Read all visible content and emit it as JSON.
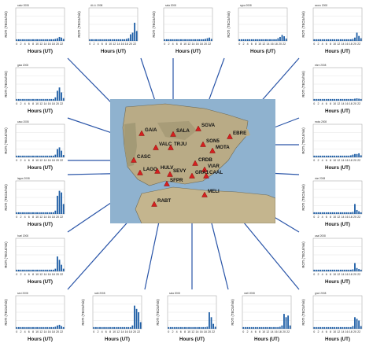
{
  "common": {
    "ylabel": "ROTI (TECU/min)",
    "xlabel": "Hours (UT)",
    "x_ticks": [
      "0",
      "2",
      "4",
      "6",
      "8",
      "10",
      "12",
      "14",
      "16",
      "18",
      "20",
      "22"
    ],
    "ylim": [
      0,
      1
    ],
    "bar_color": "#1f5fa6"
  },
  "chart_data": [
    {
      "type": "bar",
      "id": "p1",
      "title": "cadz 2008",
      "x": [
        0,
        1,
        2,
        3,
        4,
        5,
        6,
        7,
        8,
        9,
        10,
        11,
        12,
        13,
        14,
        15,
        16,
        17,
        18,
        19,
        20,
        21,
        22,
        23
      ],
      "values": [
        0.05,
        0.05,
        0.05,
        0.05,
        0.05,
        0.05,
        0.05,
        0.05,
        0.05,
        0.05,
        0.05,
        0.05,
        0.05,
        0.05,
        0.05,
        0.05,
        0.05,
        0.05,
        0.05,
        0.06,
        0.08,
        0.12,
        0.1,
        0.06
      ]
    },
    {
      "type": "bar",
      "id": "p2",
      "title": "ALLL 2008",
      "x": [
        0,
        1,
        2,
        3,
        4,
        5,
        6,
        7,
        8,
        9,
        10,
        11,
        12,
        13,
        14,
        15,
        16,
        17,
        18,
        19,
        20,
        21,
        22,
        23
      ],
      "values": [
        0.05,
        0.05,
        0.05,
        0.05,
        0.05,
        0.05,
        0.05,
        0.05,
        0.05,
        0.05,
        0.05,
        0.05,
        0.05,
        0.05,
        0.05,
        0.05,
        0.05,
        0.05,
        0.06,
        0.08,
        0.2,
        0.25,
        0.55,
        0.3
      ]
    },
    {
      "type": "bar",
      "id": "p3",
      "title": "sala 2008",
      "x": [
        0,
        1,
        2,
        3,
        4,
        5,
        6,
        7,
        8,
        9,
        10,
        11,
        12,
        13,
        14,
        15,
        16,
        17,
        18,
        19,
        20,
        21,
        22,
        23
      ],
      "values": [
        0.05,
        0.05,
        0.05,
        0.05,
        0.05,
        0.05,
        0.05,
        0.05,
        0.05,
        0.05,
        0.05,
        0.05,
        0.05,
        0.05,
        0.05,
        0.05,
        0.05,
        0.05,
        0.05,
        0.05,
        0.06,
        0.08,
        0.1,
        0.06
      ]
    },
    {
      "type": "bar",
      "id": "p4",
      "title": "sgva 2008",
      "x": [
        0,
        1,
        2,
        3,
        4,
        5,
        6,
        7,
        8,
        9,
        10,
        11,
        12,
        13,
        14,
        15,
        16,
        17,
        18,
        19,
        20,
        21,
        22,
        23
      ],
      "values": [
        0.05,
        0.05,
        0.05,
        0.05,
        0.05,
        0.05,
        0.05,
        0.05,
        0.05,
        0.05,
        0.05,
        0.05,
        0.05,
        0.05,
        0.05,
        0.05,
        0.05,
        0.05,
        0.05,
        0.08,
        0.12,
        0.18,
        0.14,
        0.07
      ]
    },
    {
      "type": "bar",
      "id": "p5",
      "title": "acoru 2008",
      "x": [
        0,
        1,
        2,
        3,
        4,
        5,
        6,
        7,
        8,
        9,
        10,
        11,
        12,
        13,
        14,
        15,
        16,
        17,
        18,
        19,
        20,
        21,
        22,
        23
      ],
      "values": [
        0.05,
        0.05,
        0.05,
        0.05,
        0.05,
        0.05,
        0.05,
        0.05,
        0.05,
        0.05,
        0.05,
        0.05,
        0.05,
        0.05,
        0.05,
        0.05,
        0.05,
        0.05,
        0.05,
        0.06,
        0.1,
        0.25,
        0.15,
        0.08
      ]
    },
    {
      "type": "bar",
      "id": "p6",
      "title": "gaia 2008",
      "x": [
        0,
        1,
        2,
        3,
        4,
        5,
        6,
        7,
        8,
        9,
        10,
        11,
        12,
        13,
        14,
        15,
        16,
        17,
        18,
        19,
        20,
        21,
        22,
        23
      ],
      "values": [
        0.05,
        0.05,
        0.05,
        0.05,
        0.05,
        0.05,
        0.05,
        0.05,
        0.05,
        0.05,
        0.05,
        0.05,
        0.05,
        0.05,
        0.05,
        0.05,
        0.05,
        0.05,
        0.05,
        0.1,
        0.3,
        0.4,
        0.25,
        0.08
      ]
    },
    {
      "type": "bar",
      "id": "p7",
      "title": "ebre 2008",
      "x": [
        0,
        1,
        2,
        3,
        4,
        5,
        6,
        7,
        8,
        9,
        10,
        11,
        12,
        13,
        14,
        15,
        16,
        17,
        18,
        19,
        20,
        21,
        22,
        23
      ],
      "values": [
        0.05,
        0.05,
        0.05,
        0.05,
        0.05,
        0.05,
        0.05,
        0.05,
        0.05,
        0.05,
        0.05,
        0.05,
        0.05,
        0.05,
        0.05,
        0.05,
        0.05,
        0.05,
        0.05,
        0.05,
        0.06,
        0.07,
        0.06,
        0.05
      ]
    },
    {
      "type": "bar",
      "id": "p8",
      "title": "casc 2008",
      "x": [
        0,
        1,
        2,
        3,
        4,
        5,
        6,
        7,
        8,
        9,
        10,
        11,
        12,
        13,
        14,
        15,
        16,
        17,
        18,
        19,
        20,
        21,
        22,
        23
      ],
      "values": [
        0.05,
        0.05,
        0.05,
        0.05,
        0.05,
        0.05,
        0.05,
        0.05,
        0.05,
        0.05,
        0.05,
        0.05,
        0.05,
        0.05,
        0.05,
        0.05,
        0.05,
        0.05,
        0.05,
        0.08,
        0.25,
        0.3,
        0.2,
        0.07
      ]
    },
    {
      "type": "bar",
      "id": "p9",
      "title": "mota 2008",
      "x": [
        0,
        1,
        2,
        3,
        4,
        5,
        6,
        7,
        8,
        9,
        10,
        11,
        12,
        13,
        14,
        15,
        16,
        17,
        18,
        19,
        20,
        21,
        22,
        23
      ],
      "values": [
        0.05,
        0.05,
        0.05,
        0.05,
        0.05,
        0.05,
        0.05,
        0.05,
        0.05,
        0.05,
        0.05,
        0.05,
        0.05,
        0.05,
        0.05,
        0.05,
        0.05,
        0.05,
        0.06,
        0.08,
        0.1,
        0.1,
        0.12,
        0.06
      ]
    },
    {
      "type": "bar",
      "id": "p10",
      "title": "lagos 2008",
      "x": [
        0,
        1,
        2,
        3,
        4,
        5,
        6,
        7,
        8,
        9,
        10,
        11,
        12,
        13,
        14,
        15,
        16,
        17,
        18,
        19,
        20,
        21,
        22,
        23
      ],
      "values": [
        0.05,
        0.05,
        0.05,
        0.05,
        0.05,
        0.05,
        0.05,
        0.05,
        0.05,
        0.05,
        0.05,
        0.05,
        0.05,
        0.05,
        0.05,
        0.05,
        0.05,
        0.05,
        0.05,
        0.1,
        0.55,
        0.7,
        0.65,
        0.3
      ]
    },
    {
      "type": "bar",
      "id": "p11",
      "title": "viar 2008",
      "x": [
        0,
        1,
        2,
        3,
        4,
        5,
        6,
        7,
        8,
        9,
        10,
        11,
        12,
        13,
        14,
        15,
        16,
        17,
        18,
        19,
        20,
        21,
        22,
        23
      ],
      "values": [
        0.05,
        0.05,
        0.05,
        0.05,
        0.05,
        0.05,
        0.05,
        0.05,
        0.05,
        0.05,
        0.05,
        0.05,
        0.05,
        0.05,
        0.05,
        0.05,
        0.05,
        0.05,
        0.05,
        0.06,
        0.3,
        0.12,
        0.08,
        0.05
      ]
    },
    {
      "type": "bar",
      "id": "p12",
      "title": "huel 2008",
      "x": [
        0,
        1,
        2,
        3,
        4,
        5,
        6,
        7,
        8,
        9,
        10,
        11,
        12,
        13,
        14,
        15,
        16,
        17,
        18,
        19,
        20,
        21,
        22,
        23
      ],
      "values": [
        0.05,
        0.05,
        0.05,
        0.05,
        0.05,
        0.05,
        0.05,
        0.05,
        0.05,
        0.05,
        0.05,
        0.05,
        0.05,
        0.05,
        0.05,
        0.05,
        0.05,
        0.05,
        0.05,
        0.08,
        0.45,
        0.35,
        0.2,
        0.08
      ]
    },
    {
      "type": "bar",
      "id": "p13",
      "title": "caal 2008",
      "x": [
        0,
        1,
        2,
        3,
        4,
        5,
        6,
        7,
        8,
        9,
        10,
        11,
        12,
        13,
        14,
        15,
        16,
        17,
        18,
        19,
        20,
        21,
        22,
        23
      ],
      "values": [
        0.05,
        0.05,
        0.05,
        0.05,
        0.05,
        0.05,
        0.05,
        0.05,
        0.05,
        0.05,
        0.05,
        0.05,
        0.05,
        0.05,
        0.05,
        0.05,
        0.05,
        0.05,
        0.05,
        0.06,
        0.25,
        0.1,
        0.07,
        0.05
      ]
    },
    {
      "type": "bar",
      "id": "p14",
      "title": "sevi 2008",
      "x": [
        0,
        1,
        2,
        3,
        4,
        5,
        6,
        7,
        8,
        9,
        10,
        11,
        12,
        13,
        14,
        15,
        16,
        17,
        18,
        19,
        20,
        21,
        22,
        23
      ],
      "values": [
        0.05,
        0.05,
        0.05,
        0.05,
        0.05,
        0.05,
        0.05,
        0.05,
        0.05,
        0.05,
        0.05,
        0.05,
        0.05,
        0.05,
        0.05,
        0.05,
        0.05,
        0.05,
        0.05,
        0.06,
        0.1,
        0.12,
        0.08,
        0.05
      ]
    },
    {
      "type": "bar",
      "id": "p15",
      "title": "rabt 2008",
      "x": [
        0,
        1,
        2,
        3,
        4,
        5,
        6,
        7,
        8,
        9,
        10,
        11,
        12,
        13,
        14,
        15,
        16,
        17,
        18,
        19,
        20,
        21,
        22,
        23
      ],
      "values": [
        0.05,
        0.05,
        0.05,
        0.05,
        0.05,
        0.05,
        0.05,
        0.05,
        0.05,
        0.05,
        0.05,
        0.05,
        0.05,
        0.05,
        0.05,
        0.05,
        0.05,
        0.05,
        0.05,
        0.1,
        0.7,
        0.6,
        0.5,
        0.2
      ]
    },
    {
      "type": "bar",
      "id": "p16",
      "title": "sala 2008",
      "x": [
        0,
        1,
        2,
        3,
        4,
        5,
        6,
        7,
        8,
        9,
        10,
        11,
        12,
        13,
        14,
        15,
        16,
        17,
        18,
        19,
        20,
        21,
        22,
        23
      ],
      "values": [
        0.05,
        0.05,
        0.05,
        0.05,
        0.05,
        0.05,
        0.05,
        0.05,
        0.05,
        0.05,
        0.05,
        0.05,
        0.05,
        0.05,
        0.05,
        0.05,
        0.05,
        0.05,
        0.05,
        0.06,
        0.5,
        0.35,
        0.15,
        0.06
      ]
    },
    {
      "type": "bar",
      "id": "p17",
      "title": "mell 2008",
      "x": [
        0,
        1,
        2,
        3,
        4,
        5,
        6,
        7,
        8,
        9,
        10,
        11,
        12,
        13,
        14,
        15,
        16,
        17,
        18,
        19,
        20,
        21,
        22,
        23
      ],
      "values": [
        0.05,
        0.05,
        0.05,
        0.05,
        0.05,
        0.05,
        0.05,
        0.05,
        0.05,
        0.05,
        0.05,
        0.05,
        0.05,
        0.05,
        0.05,
        0.05,
        0.05,
        0.05,
        0.06,
        0.1,
        0.45,
        0.35,
        0.4,
        0.1
      ]
    },
    {
      "type": "bar",
      "id": "p18",
      "title": "gra1 2008",
      "x": [
        0,
        1,
        2,
        3,
        4,
        5,
        6,
        7,
        8,
        9,
        10,
        11,
        12,
        13,
        14,
        15,
        16,
        17,
        18,
        19,
        20,
        21,
        22,
        23
      ],
      "values": [
        0.05,
        0.05,
        0.05,
        0.05,
        0.05,
        0.05,
        0.05,
        0.05,
        0.05,
        0.05,
        0.05,
        0.05,
        0.05,
        0.05,
        0.05,
        0.05,
        0.05,
        0.05,
        0.05,
        0.08,
        0.35,
        0.3,
        0.25,
        0.08
      ]
    }
  ],
  "map": {
    "stations": [
      "GAIA",
      "SALA",
      "SGVA",
      "EBRE",
      "VALC",
      "TRJU",
      "SON5",
      "MOTA",
      "CASC",
      "CRDB",
      "VIAR",
      "LAGO",
      "HULV",
      "SEVY",
      "GRA1",
      "CAAL",
      "SFPR",
      "MELI",
      "RABT"
    ]
  }
}
